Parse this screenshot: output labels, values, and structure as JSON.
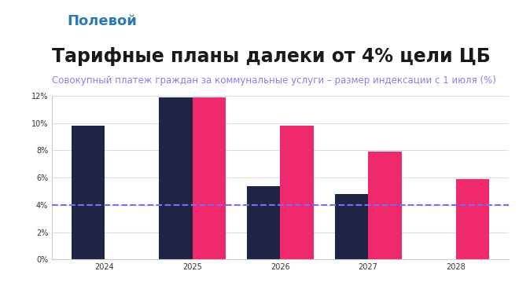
{
  "header": {
    "channel": "Полевой"
  },
  "chart_data": {
    "type": "bar",
    "title": "Тарифные планы далеки от 4% цели ЦБ",
    "subtitle": "Совокупный платеж граждан за коммунальные услуги – размер индексации с 1 июля (%)",
    "categories": [
      "2024",
      "2025",
      "2026",
      "2027",
      "2028"
    ],
    "series": [
      {
        "color": "#1f2544",
        "values": [
          9.8,
          11.9,
          5.4,
          4.8,
          null
        ]
      },
      {
        "color": "#f0286e",
        "values": [
          null,
          11.9,
          9.8,
          7.9,
          5.9
        ]
      }
    ],
    "target_line": 4,
    "ylim": [
      0,
      12
    ],
    "yticks": [
      {
        "value": 0,
        "label": "0%"
      },
      {
        "value": 2,
        "label": "2%"
      },
      {
        "value": 4,
        "label": "4%"
      },
      {
        "value": 6,
        "label": "6%"
      },
      {
        "value": 8,
        "label": "8%"
      },
      {
        "value": 10,
        "label": "10%"
      },
      {
        "value": 12,
        "label": "12%"
      }
    ],
    "grid": true
  }
}
